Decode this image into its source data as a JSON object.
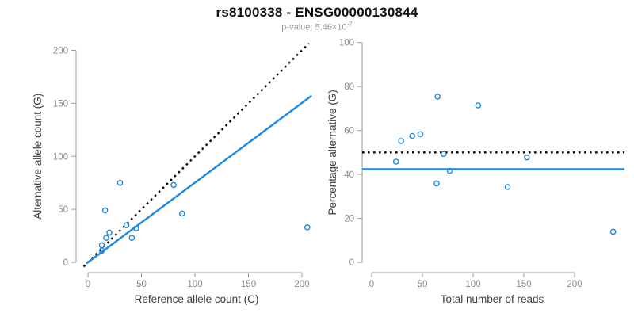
{
  "header": {
    "title": "rs8100338 - ENSG00000130844",
    "pvalue_prefix": "p-value: 5.46×10",
    "pvalue_exponent": "-7"
  },
  "colors": {
    "accent_blue": "#1E87E0",
    "dotted_line_black": "#000000",
    "axis_gray": "#9B9B9B",
    "tick_label_gray": "#8A8A8A",
    "axis_title_dark": "#3D3D3D",
    "title_black": "#111111",
    "subtitle_gray": "#9A9A9A"
  },
  "chart_data": [
    {
      "type": "scatter",
      "title": "",
      "xlabel": "Reference allele count (C)",
      "ylabel": "Alternative allele count (G)",
      "xlim": [
        0,
        200
      ],
      "ylim": [
        0,
        200
      ],
      "xticks": [
        0,
        50,
        100,
        150,
        200
      ],
      "yticks": [
        0,
        50,
        100,
        150,
        200
      ],
      "grid": false,
      "legend": "none",
      "points": [
        [
          13,
          11
        ],
        [
          13,
          16
        ],
        [
          17,
          23
        ],
        [
          20,
          28
        ],
        [
          41,
          23
        ],
        [
          16,
          49
        ],
        [
          36,
          35
        ],
        [
          45,
          32
        ],
        [
          30,
          75
        ],
        [
          88,
          46
        ],
        [
          80,
          73
        ],
        [
          205,
          33
        ]
      ],
      "lines": [
        {
          "name": "identity-line",
          "style": "dotted",
          "slope": 1,
          "intercept": 0
        },
        {
          "name": "fit-line",
          "style": "solid",
          "slope": 0.752,
          "intercept": 0
        }
      ]
    },
    {
      "type": "scatter",
      "title": "",
      "xlabel": "Total number of reads",
      "ylabel": "Percentage alternative (G)",
      "xlim": [
        0,
        240
      ],
      "ylim": [
        0,
        100
      ],
      "xticks": [
        0,
        50,
        100,
        150,
        200
      ],
      "yticks": [
        0,
        20,
        40,
        60,
        80,
        100
      ],
      "grid": false,
      "legend": "none",
      "points": [
        [
          24,
          45.8
        ],
        [
          29,
          55.2
        ],
        [
          40,
          57.5
        ],
        [
          48,
          58.3
        ],
        [
          64,
          35.9
        ],
        [
          65,
          75.4
        ],
        [
          71,
          49.3
        ],
        [
          77,
          41.6
        ],
        [
          105,
          71.4
        ],
        [
          134,
          34.3
        ],
        [
          153,
          47.7
        ],
        [
          238,
          13.9
        ]
      ],
      "lines": [
        {
          "name": "fifty-percent-line",
          "style": "dotted",
          "y": 50
        },
        {
          "name": "mean-percentage-line",
          "style": "solid",
          "y": 42.4
        }
      ]
    }
  ]
}
